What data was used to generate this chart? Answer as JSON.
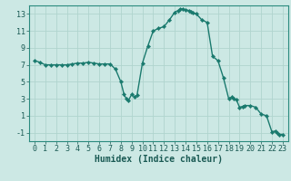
{
  "x": [
    0,
    0.5,
    1,
    1.5,
    2,
    2.5,
    3,
    3.5,
    4,
    4.5,
    5,
    5.5,
    6,
    6.5,
    7,
    7.5,
    8,
    8.3,
    8.5,
    8.7,
    9,
    9.3,
    9.5,
    10,
    10.5,
    11,
    11.5,
    12,
    12.5,
    13,
    13.3,
    13.5,
    13.7,
    14,
    14.3,
    14.5,
    14.7,
    15,
    15.5,
    16,
    16.5,
    17,
    17.5,
    18,
    18.3,
    18.5,
    18.7,
    19,
    19.3,
    19.5,
    20,
    20.5,
    21,
    21.5,
    22,
    22.3,
    22.5,
    22.7,
    23
  ],
  "y": [
    7.5,
    7.3,
    7.0,
    7.0,
    7.0,
    7.0,
    7.0,
    7.1,
    7.2,
    7.2,
    7.3,
    7.2,
    7.1,
    7.1,
    7.1,
    6.5,
    5.0,
    3.5,
    3.0,
    2.8,
    3.5,
    3.2,
    3.4,
    7.2,
    9.2,
    11.0,
    11.3,
    11.5,
    12.3,
    13.2,
    13.4,
    13.6,
    13.6,
    13.5,
    13.4,
    13.3,
    13.1,
    13.0,
    12.3,
    12.0,
    8.0,
    7.5,
    5.5,
    3.0,
    3.2,
    3.0,
    2.9,
    2.0,
    2.1,
    2.2,
    2.2,
    2.0,
    1.2,
    1.0,
    -0.9,
    -0.8,
    -1.0,
    -1.2,
    -1.2
  ],
  "line_color": "#1a7a6e",
  "marker_color": "#1a7a6e",
  "bg_color": "#cce8e4",
  "grid_color": "#b0d4ce",
  "xlabel": "Humidex (Indice chaleur)",
  "xlim": [
    -0.5,
    23.5
  ],
  "ylim": [
    -2,
    14
  ],
  "yticks": [
    -1,
    1,
    3,
    5,
    7,
    9,
    11,
    13
  ],
  "xticks": [
    0,
    1,
    2,
    3,
    4,
    5,
    6,
    7,
    8,
    9,
    10,
    11,
    12,
    13,
    14,
    15,
    16,
    17,
    18,
    19,
    20,
    21,
    22,
    23
  ],
  "label_fontsize": 7,
  "tick_fontsize": 6,
  "line_width": 1.0,
  "marker_size": 2.2
}
